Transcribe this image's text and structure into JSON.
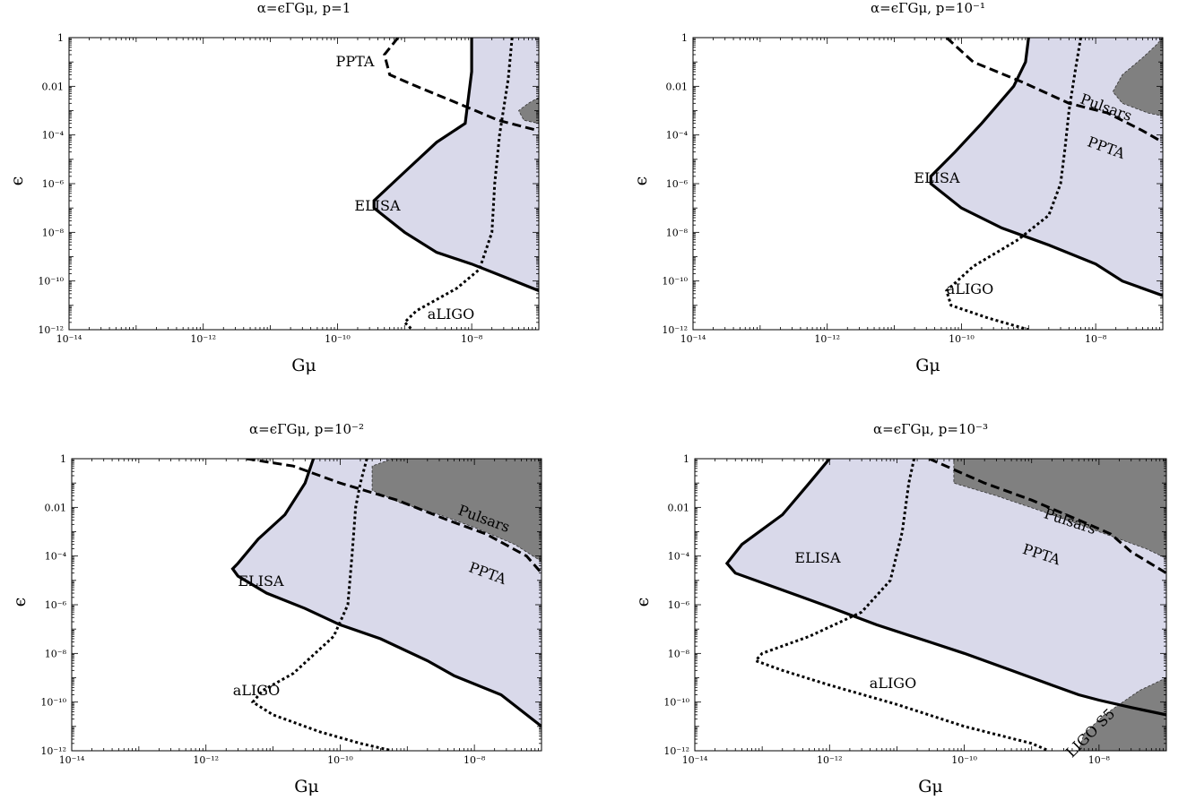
{
  "chart_data": [
    {
      "type": "area",
      "title": "α=ϵΓGμ, p=1",
      "xlabel": "Gμ",
      "ylabel": "ϵ",
      "x_scale": "log",
      "y_scale": "log",
      "xlim": [
        1e-14,
        1e-07
      ],
      "ylim": [
        1e-12,
        1
      ],
      "x_ticks": [
        "10⁻¹⁴",
        "10⁻¹²",
        "10⁻¹⁰",
        "10⁻⁸"
      ],
      "y_ticks": [
        "10⁻¹²",
        "10⁻¹⁰",
        "10⁻⁸",
        "10⁻⁶",
        "10⁻⁴",
        "0.01",
        "1"
      ],
      "series": [
        {
          "name": "ELISA",
          "style": "solid",
          "fill": "#d9d9ea",
          "points": [
            [
              1e-08,
              1
            ],
            [
              1e-08,
              0.04
            ],
            [
              8e-09,
              0.0003
            ],
            [
              3e-09,
              5e-05
            ],
            [
              1e-09,
              3e-06
            ],
            [
              3.5e-10,
              2e-07
            ],
            [
              3.5e-10,
              1e-07
            ],
            [
              1e-09,
              1e-08
            ],
            [
              3e-09,
              1.5e-09
            ],
            [
              1e-08,
              5e-10
            ],
            [
              3e-08,
              1.5e-10
            ],
            [
              1e-07,
              4e-11
            ]
          ]
        },
        {
          "name": "PPTA",
          "style": "dashed",
          "points": [
            [
              8e-10,
              1
            ],
            [
              5e-10,
              0.2
            ],
            [
              6e-10,
              0.03
            ],
            [
              1.5e-09,
              0.01
            ],
            [
              8e-09,
              0.0015
            ],
            [
              2.5e-08,
              0.0004
            ],
            [
              1e-07,
              0.00015
            ]
          ]
        },
        {
          "name": "aLIGO",
          "style": "dotted",
          "points": [
            [
              4e-08,
              1
            ],
            [
              3.5e-08,
              0.02
            ],
            [
              2.6e-08,
              0.0001
            ],
            [
              2.2e-08,
              1e-06
            ],
            [
              2e-08,
              1e-08
            ],
            [
              1.3e-08,
              3e-10
            ],
            [
              6e-09,
              5e-11
            ],
            [
              1.5e-09,
              6e-12
            ],
            [
              1e-09,
              2e-12
            ],
            [
              1.3e-09,
              1e-12
            ]
          ]
        },
        {
          "name": "Pulsars",
          "style": "filled",
          "fill": "#808080",
          "points": [
            [
              1e-07,
              0.0035
            ],
            [
              7e-08,
              0.002
            ],
            [
              5e-08,
              0.001
            ],
            [
              6e-08,
              0.0004
            ],
            [
              1e-07,
              0.0003
            ]
          ]
        }
      ],
      "annotations": [
        "PPTA",
        "ELISA",
        "aLIGO"
      ]
    },
    {
      "type": "area",
      "title": "α=ϵΓGμ, p=10⁻¹",
      "xlabel": "Gμ",
      "ylabel": "ϵ",
      "x_scale": "log",
      "y_scale": "log",
      "xlim": [
        1e-14,
        1e-07
      ],
      "ylim": [
        1e-12,
        1
      ],
      "x_ticks": [
        "10⁻¹⁴",
        "10⁻¹²",
        "10⁻¹⁰",
        "10⁻⁸"
      ],
      "y_ticks": [
        "10⁻¹²",
        "10⁻¹⁰",
        "10⁻⁸",
        "10⁻⁶",
        "10⁻⁴",
        "0.01",
        "1"
      ],
      "series": [
        {
          "name": "ELISA",
          "style": "solid",
          "fill": "#d9d9ea",
          "points": [
            [
              1e-09,
              1
            ],
            [
              9e-10,
              0.1
            ],
            [
              6e-10,
              0.01
            ],
            [
              2e-10,
              0.0003
            ],
            [
              8e-11,
              2e-05
            ],
            [
              3.5e-11,
              2e-06
            ],
            [
              3.5e-11,
              1e-06
            ],
            [
              1e-10,
              1e-07
            ],
            [
              4e-10,
              1.5e-08
            ],
            [
              2e-09,
              3e-09
            ],
            [
              1e-08,
              5e-10
            ],
            [
              2.5e-08,
              1e-10
            ],
            [
              1e-07,
              2.5e-11
            ]
          ]
        },
        {
          "name": "PPTA",
          "style": "dashed",
          "points": [
            [
              6e-11,
              1
            ],
            [
              1.5e-10,
              0.1
            ],
            [
              8e-10,
              0.015
            ],
            [
              4e-09,
              0.002
            ],
            [
              1.5e-08,
              0.0008
            ],
            [
              5e-08,
              0.00015
            ],
            [
              1e-07,
              5e-05
            ]
          ]
        },
        {
          "name": "aLIGO",
          "style": "dotted",
          "points": [
            [
              6e-09,
              1
            ],
            [
              5e-09,
              0.05
            ],
            [
              4e-09,
              0.001
            ],
            [
              3.5e-09,
              3e-05
            ],
            [
              3e-09,
              1e-06
            ],
            [
              2e-09,
              5e-08
            ],
            [
              7e-10,
              5e-09
            ],
            [
              1.5e-10,
              4e-10
            ],
            [
              6e-11,
              4e-11
            ],
            [
              7e-11,
              1e-11
            ],
            [
              2.5e-10,
              3e-12
            ],
            [
              1e-09,
              1e-12
            ]
          ]
        },
        {
          "name": "Pulsars",
          "style": "filled",
          "fill": "#808080",
          "points": [
            [
              1e-07,
              1
            ],
            [
              8e-08,
              0.5
            ],
            [
              5e-08,
              0.15
            ],
            [
              2.5e-08,
              0.03
            ],
            [
              1.8e-08,
              0.006
            ],
            [
              2.5e-08,
              0.002
            ],
            [
              6e-08,
              0.0008
            ],
            [
              1e-07,
              0.0006
            ]
          ]
        }
      ],
      "annotations": [
        "Pulsars",
        "PPTA",
        "ELISA",
        "aLIGO"
      ]
    },
    {
      "type": "area",
      "title": "α=ϵΓGμ, p=10⁻²",
      "xlabel": "Gμ",
      "ylabel": "ϵ",
      "x_scale": "log",
      "y_scale": "log",
      "xlim": [
        1e-14,
        1e-07
      ],
      "ylim": [
        1e-12,
        1
      ],
      "x_ticks": [
        "10⁻¹⁴",
        "10⁻¹²",
        "10⁻¹⁰",
        "10⁻⁸"
      ],
      "y_ticks": [
        "10⁻¹²",
        "10⁻¹⁰",
        "10⁻⁸",
        "10⁻⁶",
        "10⁻⁴",
        "0.01",
        "1"
      ],
      "series": [
        {
          "name": "ELISA",
          "style": "solid",
          "fill": "#d9d9ea",
          "points": [
            [
              4e-11,
              1
            ],
            [
              3e-11,
              0.1
            ],
            [
              1.5e-11,
              0.005
            ],
            [
              6e-12,
              0.0005
            ],
            [
              3e-12,
              5e-05
            ],
            [
              2.5e-12,
              3e-05
            ],
            [
              3e-12,
              1.5e-05
            ],
            [
              8e-12,
              3e-06
            ],
            [
              3e-11,
              7e-07
            ],
            [
              1e-10,
              1.5e-07
            ],
            [
              4e-10,
              4e-08
            ],
            [
              2e-09,
              5e-09
            ],
            [
              5e-09,
              1.2e-09
            ],
            [
              2.5e-08,
              2e-10
            ],
            [
              1e-07,
              1e-11
            ]
          ]
        },
        {
          "name": "PPTA",
          "style": "dashed",
          "points": [
            [
              4e-12,
              1
            ],
            [
              2e-11,
              0.5
            ],
            [
              1e-10,
              0.1
            ],
            [
              7e-10,
              0.02
            ],
            [
              4e-09,
              0.003
            ],
            [
              1.5e-08,
              0.0008
            ],
            [
              6e-08,
              0.0001
            ],
            [
              1e-07,
              2e-05
            ]
          ]
        },
        {
          "name": "aLIGO",
          "style": "dotted",
          "points": [
            [
              2.5e-10,
              1
            ],
            [
              2e-10,
              0.1
            ],
            [
              1.7e-10,
              0.01
            ],
            [
              1.5e-10,
              0.0001
            ],
            [
              1.3e-10,
              1e-06
            ],
            [
              8e-11,
              5e-08
            ],
            [
              2e-11,
              1.5e-09
            ],
            [
              7e-12,
              3e-10
            ],
            [
              5e-12,
              1e-10
            ],
            [
              1e-11,
              3e-11
            ],
            [
              5e-11,
              6e-12
            ],
            [
              2e-10,
              2e-12
            ],
            [
              6e-10,
              1e-12
            ]
          ]
        },
        {
          "name": "Pulsars",
          "style": "filled",
          "fill": "#808080",
          "points": [
            [
              1e-07,
              1
            ],
            [
              6e-10,
              1
            ],
            [
              3e-10,
              0.5
            ],
            [
              3e-10,
              0.05
            ],
            [
              8e-10,
              0.015
            ],
            [
              3e-09,
              0.005
            ],
            [
              1e-08,
              0.0015
            ],
            [
              4e-08,
              0.0003
            ],
            [
              1e-07,
              6e-05
            ]
          ]
        }
      ],
      "annotations": [
        "Pulsars",
        "PPTA",
        "ELISA",
        "aLIGO"
      ]
    },
    {
      "type": "area",
      "title": "α=ϵΓGμ, p=10⁻³",
      "xlabel": "Gμ",
      "ylabel": "ϵ",
      "x_scale": "log",
      "y_scale": "log",
      "xlim": [
        1e-14,
        1e-07
      ],
      "ylim": [
        1e-12,
        1
      ],
      "x_ticks": [
        "10⁻¹⁴",
        "10⁻¹²",
        "10⁻¹⁰",
        "10⁻⁸"
      ],
      "y_ticks": [
        "10⁻¹²",
        "10⁻¹⁰",
        "10⁻⁸",
        "10⁻⁶",
        "10⁻⁴",
        "0.01",
        "1"
      ],
      "series": [
        {
          "name": "ELISA",
          "style": "solid",
          "fill": "#d9d9ea",
          "points": [
            [
              1e-12,
              1
            ],
            [
              5e-13,
              0.1
            ],
            [
              2e-13,
              0.005
            ],
            [
              5e-14,
              0.0003
            ],
            [
              3e-14,
              5e-05
            ],
            [
              4e-14,
              2e-05
            ],
            [
              2e-13,
              4e-06
            ],
            [
              1e-12,
              8e-07
            ],
            [
              5e-12,
              1.5e-07
            ],
            [
              3e-11,
              3e-08
            ],
            [
              1e-10,
              1e-08
            ],
            [
              5e-10,
              2e-09
            ],
            [
              2e-09,
              5e-10
            ],
            [
              5e-09,
              2e-10
            ],
            [
              1e-08,
              1.2e-10
            ],
            [
              3e-08,
              6e-11
            ],
            [
              1e-07,
              3e-11
            ]
          ]
        },
        {
          "name": "PPTA",
          "style": "dashed",
          "points": [
            [
              3e-11,
              1
            ],
            [
              2e-10,
              0.1
            ],
            [
              1e-09,
              0.02
            ],
            [
              5e-09,
              0.003
            ],
            [
              1.5e-08,
              0.0008
            ],
            [
              3e-08,
              0.00015
            ],
            [
              1e-07,
              2e-05
            ]
          ]
        },
        {
          "name": "aLIGO",
          "style": "dotted",
          "points": [
            [
              1.8e-11,
              1
            ],
            [
              1.5e-11,
              0.1
            ],
            [
              1.2e-11,
              0.001
            ],
            [
              8e-12,
              1e-05
            ],
            [
              3e-12,
              5e-07
            ],
            [
              5e-13,
              5e-08
            ],
            [
              1e-13,
              1e-08
            ],
            [
              8e-14,
              5e-09
            ],
            [
              2e-13,
              2e-09
            ],
            [
              1e-12,
              5e-10
            ],
            [
              1e-11,
              8e-11
            ],
            [
              1e-10,
              1e-11
            ],
            [
              1e-09,
              2e-12
            ],
            [
              1.8e-09,
              1e-12
            ]
          ]
        },
        {
          "name": "Pulsars",
          "style": "filled",
          "fill": "#808080",
          "points": [
            [
              1e-07,
              1
            ],
            [
              7e-11,
              1
            ],
            [
              7e-11,
              0.1
            ],
            [
              3e-10,
              0.03
            ],
            [
              2e-09,
              0.005
            ],
            [
              1e-08,
              0.001
            ],
            [
              5e-08,
              0.0002
            ],
            [
              1e-07,
              8e-05
            ]
          ]
        },
        {
          "name": "LIGO S5",
          "style": "filled",
          "fill": "#808080",
          "points": [
            [
              1e-07,
              1e-09
            ],
            [
              4e-08,
              3e-10
            ],
            [
              1.2e-08,
              3e-11
            ],
            [
              6e-09,
              5e-12
            ],
            [
              5e-09,
              1e-12
            ],
            [
              1e-07,
              1e-12
            ]
          ]
        }
      ],
      "annotations": [
        "Pulsars",
        "PPTA",
        "ELISA",
        "aLIGO",
        "LIGO S5"
      ]
    }
  ],
  "panels_text": [
    {
      "title": "α=ϵΓGμ, p=1",
      "xlabel": "Gμ",
      "ylabel": "ϵ",
      "labels": {
        "ppta": "PPTA",
        "elisa": "ELISA",
        "aligo": "aLIGO"
      }
    },
    {
      "title": "α=ϵΓGμ, p=10⁻¹",
      "xlabel": "Gμ",
      "ylabel": "ϵ",
      "labels": {
        "pulsars": "Pulsars",
        "ppta": "PPTA",
        "elisa": "ELISA",
        "aligo": "aLIGO"
      }
    },
    {
      "title": "α=ϵΓGμ, p=10⁻²",
      "xlabel": "Gμ",
      "ylabel": "ϵ",
      "labels": {
        "pulsars": "Pulsars",
        "ppta": "PPTA",
        "elisa": "ELISA",
        "aligo": "aLIGO"
      }
    },
    {
      "title": "α=ϵΓGμ, p=10⁻³",
      "xlabel": "Gμ",
      "ylabel": "ϵ",
      "labels": {
        "pulsars": "Pulsars",
        "ppta": "PPTA",
        "elisa": "ELISA",
        "aligo": "aLIGO",
        "ligo_s5": "LIGO S5"
      }
    }
  ],
  "colors": {
    "sensitivity_fill": "#d9d9ea",
    "excluded_fill": "#808080",
    "line": "#000000"
  }
}
